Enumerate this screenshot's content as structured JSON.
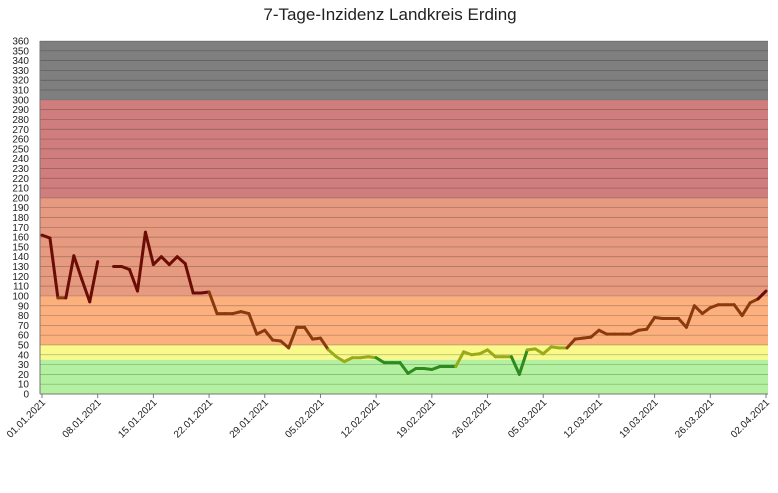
{
  "chart_data": {
    "type": "line",
    "title": "7-Tage-Inzidenz Landkreis Erding",
    "xlabel": "",
    "ylabel": "",
    "x_range": [
      "01.01.2021",
      "02.04.2021"
    ],
    "ylim": [
      0,
      360
    ],
    "ytick_step": 10,
    "grid": true,
    "xtick_labels": [
      "01.01.2021",
      "08.01.2021",
      "15.01.2021",
      "22.01.2021",
      "29.01.2021",
      "05.02.2021",
      "12.02.2021",
      "19.02.2021",
      "26.02.2021",
      "05.03.2021",
      "12.03.2021",
      "19.03.2021",
      "26.03.2021",
      "02.04.2021"
    ],
    "bands": [
      {
        "from": 0,
        "to": 35,
        "color": "#b3f0a0"
      },
      {
        "from": 35,
        "to": 50,
        "color": "#fafa8c"
      },
      {
        "from": 50,
        "to": 100,
        "color": "#fcb07e"
      },
      {
        "from": 100,
        "to": 200,
        "color": "#e69a80"
      },
      {
        "from": 200,
        "to": 300,
        "color": "#cf7d7d"
      },
      {
        "from": 300,
        "to": 360,
        "color": "#7f7f7f"
      }
    ],
    "line_colors": {
      "below_35": "#2e8b1e",
      "from_35_to_50": "#9aab1a",
      "from_50_to_100": "#8a3a0e",
      "above_100": "#6b0c05"
    },
    "series": [
      {
        "points": [
          [
            "01.01.2021",
            162
          ],
          [
            "02.01.2021",
            159
          ],
          [
            "03.01.2021",
            98
          ],
          [
            "04.01.2021",
            98
          ],
          [
            "05.01.2021",
            141
          ],
          [
            "06.01.2021",
            117
          ],
          [
            "07.01.2021",
            94
          ],
          [
            "08.01.2021",
            135
          ],
          [
            "09.01.2021",
            null
          ],
          [
            "10.01.2021",
            130
          ],
          [
            "11.01.2021",
            130
          ],
          [
            "12.01.2021",
            127
          ],
          [
            "13.01.2021",
            105
          ],
          [
            "14.01.2021",
            165
          ],
          [
            "15.01.2021",
            132
          ],
          [
            "16.01.2021",
            140
          ],
          [
            "17.01.2021",
            132
          ],
          [
            "18.01.2021",
            140
          ],
          [
            "19.01.2021",
            133
          ],
          [
            "20.01.2021",
            103
          ],
          [
            "21.01.2021",
            103
          ],
          [
            "22.01.2021",
            104
          ],
          [
            "23.01.2021",
            82
          ],
          [
            "24.01.2021",
            82
          ],
          [
            "25.01.2021",
            82
          ],
          [
            "26.01.2021",
            84
          ],
          [
            "27.01.2021",
            82
          ],
          [
            "28.01.2021",
            61
          ],
          [
            "29.01.2021",
            65
          ],
          [
            "30.01.2021",
            55
          ],
          [
            "31.01.2021",
            54
          ],
          [
            "01.02.2021",
            47
          ],
          [
            "02.02.2021",
            68
          ],
          [
            "03.02.2021",
            68
          ],
          [
            "04.02.2021",
            56
          ],
          [
            "05.02.2021",
            57
          ],
          [
            "06.02.2021",
            45
          ],
          [
            "07.02.2021",
            38
          ],
          [
            "08.02.2021",
            33
          ],
          [
            "09.02.2021",
            37
          ],
          [
            "10.02.2021",
            37
          ],
          [
            "11.02.2021",
            38
          ],
          [
            "12.02.2021",
            37
          ],
          [
            "13.02.2021",
            32
          ],
          [
            "14.02.2021",
            32
          ],
          [
            "15.02.2021",
            32
          ],
          [
            "16.02.2021",
            21
          ],
          [
            "17.02.2021",
            26
          ],
          [
            "18.02.2021",
            26
          ],
          [
            "19.02.2021",
            25
          ],
          [
            "20.02.2021",
            28
          ],
          [
            "21.02.2021",
            28
          ],
          [
            "22.02.2021",
            28
          ],
          [
            "23.02.2021",
            43
          ],
          [
            "24.02.2021",
            40
          ],
          [
            "25.02.2021",
            41
          ],
          [
            "26.02.2021",
            45
          ],
          [
            "27.02.2021",
            38
          ],
          [
            "28.02.2021",
            38
          ],
          [
            "01.03.2021",
            38
          ],
          [
            "02.03.2021",
            20
          ],
          [
            "03.03.2021",
            45
          ],
          [
            "04.03.2021",
            46
          ],
          [
            "05.03.2021",
            41
          ],
          [
            "06.03.2021",
            48
          ],
          [
            "07.03.2021",
            47
          ],
          [
            "08.03.2021",
            47
          ],
          [
            "09.03.2021",
            56
          ],
          [
            "10.03.2021",
            57
          ],
          [
            "11.03.2021",
            58
          ],
          [
            "12.03.2021",
            65
          ],
          [
            "13.03.2021",
            61
          ],
          [
            "14.03.2021",
            61
          ],
          [
            "15.03.2021",
            61
          ],
          [
            "16.03.2021",
            61
          ],
          [
            "17.03.2021",
            65
          ],
          [
            "18.03.2021",
            66
          ],
          [
            "19.03.2021",
            78
          ],
          [
            "20.03.2021",
            77
          ],
          [
            "21.03.2021",
            77
          ],
          [
            "22.03.2021",
            77
          ],
          [
            "23.03.2021",
            68
          ],
          [
            "24.03.2021",
            90
          ],
          [
            "25.03.2021",
            82
          ],
          [
            "26.03.2021",
            88
          ],
          [
            "27.03.2021",
            91
          ],
          [
            "28.03.2021",
            91
          ],
          [
            "29.03.2021",
            91
          ],
          [
            "30.03.2021",
            80
          ],
          [
            "31.03.2021",
            93
          ],
          [
            "01.04.2021",
            97
          ],
          [
            "02.04.2021",
            105
          ]
        ]
      }
    ]
  }
}
